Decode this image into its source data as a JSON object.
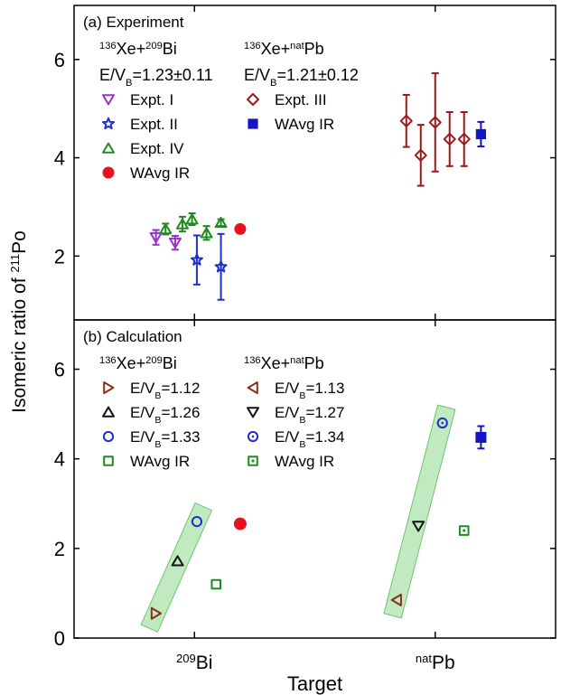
{
  "chart_data": [
    {
      "type": "scatter",
      "panel_label": "(a) Experiment",
      "ylim": [
        0.7,
        7.1
      ],
      "yticks": [
        2,
        4,
        6
      ],
      "groups": [
        {
          "heading": {
            "pre": "136",
            "a": "Xe+",
            "sup2": "209",
            "b": "Bi"
          },
          "condition": {
            "a": "E/V",
            "sub": "B",
            "b": "=1.23±0.11"
          },
          "series": [
            {
              "name": "Expt. I",
              "marker": "triangle-down-open",
              "color": "#9b30d0",
              "points": [
                {
                  "x": 0.84,
                  "y": 2.38,
                  "err": 0.15
                },
                {
                  "x": 0.92,
                  "y": 2.27,
                  "err": 0.14
                }
              ]
            },
            {
              "name": "Expt. II",
              "marker": "star-open",
              "color": "#1f2fd0",
              "points": [
                {
                  "x": 1.01,
                  "y": 1.92,
                  "err": 0.5
                },
                {
                  "x": 1.11,
                  "y": 1.78,
                  "err": 0.67
                }
              ]
            },
            {
              "name": "Expt. IV",
              "marker": "triangle-up-open",
              "color": "#1f8a1f",
              "points": [
                {
                  "x": 0.88,
                  "y": 2.55,
                  "err": 0.11
                },
                {
                  "x": 0.95,
                  "y": 2.65,
                  "err": 0.15
                },
                {
                  "x": 0.99,
                  "y": 2.75,
                  "err": 0.12
                },
                {
                  "x": 1.05,
                  "y": 2.47,
                  "err": 0.14
                },
                {
                  "x": 1.11,
                  "y": 2.68,
                  "err": 0.07
                }
              ]
            },
            {
              "name": "WAvg IR",
              "marker": "circle-filled",
              "color": "#e8121f",
              "points": [
                {
                  "x": 1.19,
                  "y": 2.55,
                  "err": 0
                }
              ]
            }
          ]
        },
        {
          "heading": {
            "pre": "136",
            "a": "Xe+",
            "sup2": "nat",
            "b": "Pb"
          },
          "condition": {
            "a": "E/V",
            "sub": "B",
            "b": "=1.21±0.12"
          },
          "series": [
            {
              "name": "Expt. III",
              "marker": "diamond-open",
              "color": "#9b1a1a",
              "points": [
                {
                  "x": 1.88,
                  "y": 4.75,
                  "err": 0.53
                },
                {
                  "x": 1.94,
                  "y": 4.05,
                  "err": 0.62
                },
                {
                  "x": 2.0,
                  "y": 4.72,
                  "err": 1.0
                },
                {
                  "x": 2.06,
                  "y": 4.38,
                  "err": 0.55
                },
                {
                  "x": 2.12,
                  "y": 4.38,
                  "err": 0.55
                }
              ]
            },
            {
              "name": "WAvg IR",
              "marker": "square-filled",
              "color": "#1414c8",
              "points": [
                {
                  "x": 2.19,
                  "y": 4.48,
                  "err": 0.25
                }
              ]
            }
          ]
        }
      ]
    },
    {
      "type": "scatter",
      "panel_label": "(b) Calculation",
      "ylim": [
        0,
        7.1
      ],
      "yticks": [
        0,
        2,
        4,
        6
      ],
      "groups": [
        {
          "heading": {
            "pre": "136",
            "a": "Xe+",
            "sup2": "209",
            "b": "Bi"
          },
          "series": [
            {
              "name": {
                "a": "E/V",
                "sub": "B",
                "b": "=1.12"
              },
              "marker": "triangle-right-open",
              "color": "#8b2e1a",
              "points": [
                {
                  "x": 0.84,
                  "y": 0.55,
                  "err": 0
                }
              ]
            },
            {
              "name": {
                "a": "E/V",
                "sub": "B",
                "b": "=1.26"
              },
              "marker": "triangle-up-open",
              "color": "#111111",
              "points": [
                {
                  "x": 0.93,
                  "y": 1.72,
                  "err": 0
                }
              ]
            },
            {
              "name": {
                "a": "E/V",
                "sub": "B",
                "b": "=1.33"
              },
              "marker": "circle-open",
              "color": "#1f2fd0",
              "points": [
                {
                  "x": 1.01,
                  "y": 2.6,
                  "err": 0
                }
              ]
            },
            {
              "name": "WAvg IR",
              "marker": "square-open",
              "color": "#1f8a1f",
              "points": [
                {
                  "x": 1.09,
                  "y": 1.2,
                  "err": 0
                }
              ]
            }
          ],
          "overlay_points": [
            {
              "marker": "circle-filled",
              "color": "#e8121f",
              "x": 1.19,
              "y": 2.55,
              "err": 0
            }
          ]
        },
        {
          "heading": {
            "pre": "136",
            "a": "Xe+",
            "sup2": "nat",
            "b": "Pb"
          },
          "series": [
            {
              "name": {
                "a": "E/V",
                "sub": "B",
                "b": "=1.13"
              },
              "marker": "triangle-left-open",
              "color": "#8b2e1a",
              "points": [
                {
                  "x": 1.84,
                  "y": 0.85,
                  "err": 0
                }
              ]
            },
            {
              "name": {
                "a": "E/V",
                "sub": "B",
                "b": "=1.27"
              },
              "marker": "triangle-down-open",
              "color": "#111111",
              "points": [
                {
                  "x": 1.93,
                  "y": 2.5,
                  "err": 0
                }
              ]
            },
            {
              "name": {
                "a": "E/V",
                "sub": "B",
                "b": "=1.34"
              },
              "marker": "circle-dot-open",
              "color": "#1f2fd0",
              "points": [
                {
                  "x": 2.03,
                  "y": 4.8,
                  "err": 0
                }
              ]
            },
            {
              "name": "WAvg IR",
              "marker": "square-dot-open",
              "color": "#1f8a1f",
              "points": [
                {
                  "x": 2.12,
                  "y": 2.4,
                  "err": 0
                }
              ]
            }
          ],
          "overlay_points": [
            {
              "marker": "square-filled",
              "color": "#1414c8",
              "x": 2.19,
              "y": 4.48,
              "err": 0.25
            }
          ]
        }
      ],
      "highlight_bands": [
        {
          "from": {
            "x": 0.84,
            "y": 0.55
          },
          "to": {
            "x": 1.01,
            "y": 2.6
          },
          "color": "#8ed88e"
        },
        {
          "from": {
            "x": 1.84,
            "y": 0.85
          },
          "to": {
            "x": 2.03,
            "y": 4.8
          },
          "color": "#8ed88e"
        }
      ]
    }
  ],
  "axes": {
    "xlim": [
      0.5,
      2.5
    ],
    "ylabel": {
      "a": "Isomeric ratio of ",
      "sup": "211",
      "b": "Po"
    },
    "xlabel": "Target",
    "xticks": [
      {
        "x": 1,
        "sup": "209",
        "text": "Bi"
      },
      {
        "x": 2,
        "sup": "nat",
        "text": "Pb"
      }
    ]
  }
}
